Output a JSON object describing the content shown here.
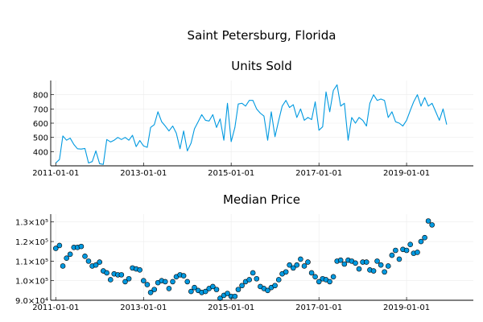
{
  "figure_title": "Saint Petersburg, Florida",
  "chart_data": [
    {
      "type": "line",
      "title": "Units Sold",
      "xlabel": "",
      "ylabel": "",
      "x_axis": "date",
      "xlim": [
        "2010-11-20",
        "2020-07-10"
      ],
      "ylim": [
        300,
        900
      ],
      "xticks": [
        "2011-01-01",
        "2013-01-01",
        "2015-01-01",
        "2017-01-01",
        "2019-01-01"
      ],
      "yticks": [
        400,
        500,
        600,
        700,
        800
      ],
      "ytick_labels": [
        "400",
        "500",
        "600",
        "700",
        "800"
      ],
      "grid": true,
      "legend": "none",
      "color": "#0099e0",
      "x_start": "2011-01",
      "x_step": "1 month",
      "series": [
        {
          "values": [
            320,
            345,
            510,
            480,
            495,
            450,
            420,
            418,
            422,
            320,
            330,
            405,
            315,
            310,
            485,
            468,
            480,
            500,
            485,
            500,
            480,
            515,
            435,
            478,
            440,
            430,
            570,
            590,
            680,
            610,
            580,
            545,
            580,
            530,
            420,
            545,
            405,
            460,
            560,
            610,
            660,
            620,
            615,
            660,
            570,
            630,
            480,
            740,
            470,
            570,
            735,
            740,
            720,
            760,
            760,
            700,
            670,
            650,
            480,
            680,
            505,
            620,
            720,
            760,
            710,
            730,
            640,
            700,
            620,
            640,
            625,
            750,
            550,
            575,
            820,
            680,
            830,
            870,
            720,
            740,
            480,
            640,
            600,
            640,
            620,
            580,
            740,
            800,
            760,
            770,
            760,
            640,
            680,
            610,
            600,
            580,
            620,
            690,
            750,
            800,
            720,
            780,
            720,
            740,
            680,
            620,
            700,
            590
          ]
        }
      ]
    },
    {
      "type": "scatter",
      "title": "Median Price",
      "xlabel": "",
      "ylabel": "",
      "x_axis": "date",
      "xlim": [
        "2010-11-20",
        "2020-07-10"
      ],
      "ylim": [
        90000,
        134000
      ],
      "xticks": [
        "2011-01-01",
        "2013-01-01",
        "2015-01-01",
        "2017-01-01",
        "2019-01-01"
      ],
      "yticks": [
        90000,
        100000,
        110000,
        120000,
        130000
      ],
      "ytick_labels": [
        "9.0×10⁴",
        "1.0×10⁵",
        "1.1×10⁵",
        "1.2×10⁵",
        "1.3×10⁵"
      ],
      "grid": true,
      "legend": "none",
      "color": "#0099e0",
      "marker_edge_color": "#000000",
      "x_start": "2011-01",
      "x_step": "1 month",
      "series": [
        {
          "values": [
            116500,
            118000,
            107500,
            111500,
            113500,
            117000,
            117000,
            117500,
            112500,
            110000,
            107500,
            108000,
            109500,
            105000,
            104000,
            100500,
            103500,
            103000,
            103000,
            99500,
            101000,
            106500,
            106000,
            105500,
            100000,
            98000,
            94000,
            95500,
            99000,
            100000,
            99500,
            96000,
            99500,
            102000,
            103000,
            102500,
            99500,
            94500,
            96500,
            95000,
            94000,
            94500,
            96000,
            97000,
            95500,
            91000,
            92500,
            93500,
            92000,
            92000,
            95500,
            97500,
            99500,
            100500,
            104000,
            101000,
            97000,
            96000,
            95000,
            96500,
            97500,
            100500,
            103500,
            104500,
            108000,
            106500,
            108000,
            111000,
            107500,
            109500,
            104000,
            102000,
            99500,
            101000,
            100500,
            99500,
            102000,
            110000,
            110500,
            108500,
            110500,
            110000,
            109000,
            106000,
            109500,
            109500,
            105500,
            105000,
            110000,
            108000,
            104500,
            107500,
            113000,
            115500,
            111000,
            116000,
            115500,
            118500,
            114000,
            114500,
            120000,
            122000,
            130500,
            128500
          ]
        }
      ]
    }
  ]
}
